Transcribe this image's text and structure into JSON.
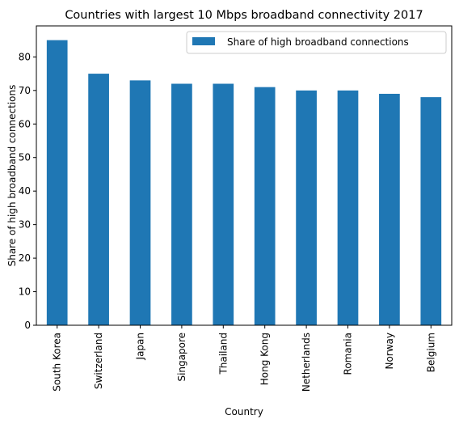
{
  "chart_data": {
    "type": "bar",
    "title": "Countries with largest 10 Mbps broadband connectivity 2017",
    "xlabel": "Country",
    "ylabel": "Share of high broadband connections",
    "categories": [
      "South Korea",
      "Switzerland",
      "Japan",
      "Singapore",
      "Thailand",
      "Hong Kong",
      "Netherlands",
      "Romania",
      "Norway",
      "Belgium"
    ],
    "series": [
      {
        "name": "Share of high broadband connections",
        "values": [
          85,
          75,
          73,
          72,
          72,
          71,
          70,
          70,
          69,
          68
        ],
        "color": "#1f77b4"
      }
    ],
    "ylim": [
      0,
      89.25
    ],
    "yticks": [
      0,
      10,
      20,
      30,
      40,
      50,
      60,
      70,
      80
    ],
    "grid": false,
    "legend_position": "top-right"
  }
}
